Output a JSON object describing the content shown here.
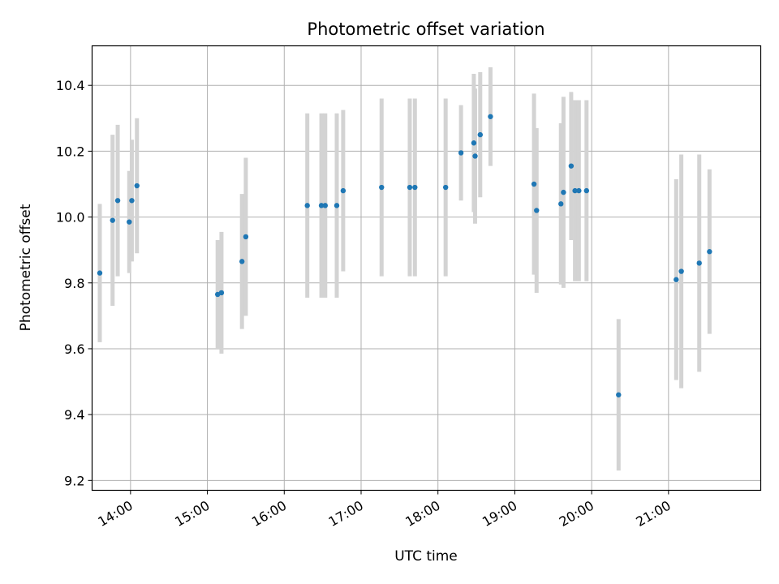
{
  "chart_data": {
    "type": "scatter",
    "title": "Photometric offset variation",
    "xlabel": "UTC time",
    "ylabel": "Photometric offset",
    "x_ticks": [
      "14:00",
      "15:00",
      "16:00",
      "17:00",
      "18:00",
      "19:00",
      "20:00",
      "21:00"
    ],
    "y_ticks": [
      "9.2",
      "9.4",
      "9.6",
      "9.8",
      "10.0",
      "10.2",
      "10.4"
    ],
    "xlim": [
      "13:30",
      "22:12"
    ],
    "ylim": [
      9.17,
      10.52
    ],
    "grid": true,
    "colors": {
      "point": "#1f77b4",
      "errorbar": "#d3d3d3",
      "grid": "#b0b0b0"
    },
    "points": [
      {
        "time": "13:36",
        "y": 9.83,
        "err": 0.21
      },
      {
        "time": "13:46",
        "y": 9.99,
        "err": 0.26
      },
      {
        "time": "13:50",
        "y": 10.05,
        "err": 0.23
      },
      {
        "time": "13:59",
        "y": 9.985,
        "err": 0.155
      },
      {
        "time": "14:01",
        "y": 10.05,
        "err": 0.185
      },
      {
        "time": "14:05",
        "y": 10.095,
        "err": 0.205
      },
      {
        "time": "15:08",
        "y": 9.765,
        "err": 0.165
      },
      {
        "time": "15:11",
        "y": 9.77,
        "err": 0.185
      },
      {
        "time": "15:27",
        "y": 9.865,
        "err": 0.205
      },
      {
        "time": "15:30",
        "y": 9.94,
        "err": 0.24
      },
      {
        "time": "16:18",
        "y": 10.035,
        "err": 0.28
      },
      {
        "time": "16:29",
        "y": 10.035,
        "err": 0.28
      },
      {
        "time": "16:32",
        "y": 10.035,
        "err": 0.28
      },
      {
        "time": "16:41",
        "y": 10.035,
        "err": 0.28
      },
      {
        "time": "16:46",
        "y": 10.08,
        "err": 0.245
      },
      {
        "time": "17:16",
        "y": 10.09,
        "err": 0.27
      },
      {
        "time": "17:38",
        "y": 10.09,
        "err": 0.27
      },
      {
        "time": "17:42",
        "y": 10.09,
        "err": 0.27
      },
      {
        "time": "18:06",
        "y": 10.09,
        "err": 0.27
      },
      {
        "time": "18:18",
        "y": 10.195,
        "err": 0.145
      },
      {
        "time": "18:28",
        "y": 10.225,
        "err": 0.21
      },
      {
        "time": "18:29",
        "y": 10.185,
        "err": 0.205
      },
      {
        "time": "18:33",
        "y": 10.25,
        "err": 0.19
      },
      {
        "time": "18:41",
        "y": 10.305,
        "err": 0.15
      },
      {
        "time": "19:15",
        "y": 10.1,
        "err": 0.275
      },
      {
        "time": "19:17",
        "y": 10.02,
        "err": 0.25
      },
      {
        "time": "19:36",
        "y": 10.04,
        "err": 0.245
      },
      {
        "time": "19:38",
        "y": 10.075,
        "err": 0.29
      },
      {
        "time": "19:44",
        "y": 10.155,
        "err": 0.225
      },
      {
        "time": "19:47",
        "y": 10.08,
        "err": 0.275
      },
      {
        "time": "19:50",
        "y": 10.08,
        "err": 0.275
      },
      {
        "time": "19:56",
        "y": 10.08,
        "err": 0.275
      },
      {
        "time": "20:21",
        "y": 9.46,
        "err": 0.23
      },
      {
        "time": "21:06",
        "y": 9.81,
        "err": 0.305
      },
      {
        "time": "21:10",
        "y": 9.835,
        "err": 0.355
      },
      {
        "time": "21:24",
        "y": 9.86,
        "err": 0.33
      },
      {
        "time": "21:32",
        "y": 9.895,
        "err": 0.25
      }
    ]
  }
}
